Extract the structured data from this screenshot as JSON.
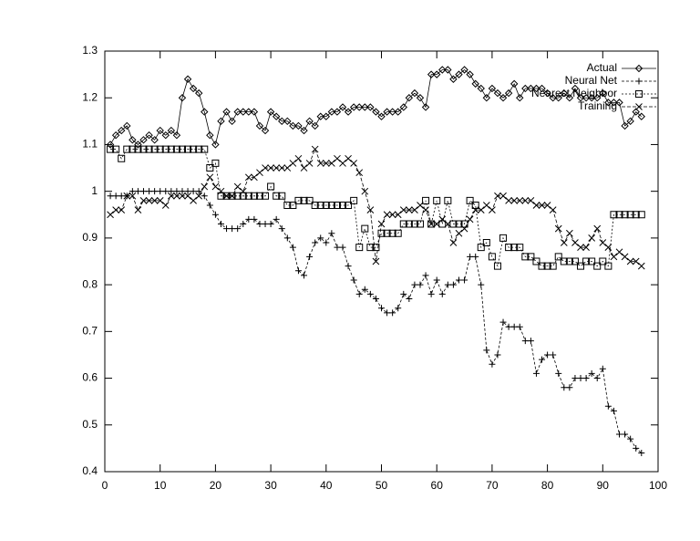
{
  "chart_data": {
    "type": "line",
    "x": [
      1,
      2,
      3,
      4,
      5,
      6,
      7,
      8,
      9,
      10,
      11,
      12,
      13,
      14,
      15,
      16,
      17,
      18,
      19,
      20,
      21,
      22,
      23,
      24,
      25,
      26,
      27,
      28,
      29,
      30,
      31,
      32,
      33,
      34,
      35,
      36,
      37,
      38,
      39,
      40,
      41,
      42,
      43,
      44,
      45,
      46,
      47,
      48,
      49,
      50,
      51,
      52,
      53,
      54,
      55,
      56,
      57,
      58,
      59,
      60,
      61,
      62,
      63,
      64,
      65,
      66,
      67,
      68,
      69,
      70,
      71,
      72,
      73,
      74,
      75,
      76,
      77,
      78,
      79,
      80,
      81,
      82,
      83,
      84,
      85,
      86,
      87,
      88,
      89,
      90,
      91,
      92,
      93,
      94,
      95,
      96,
      97
    ],
    "series": [
      {
        "name": "Actual",
        "color": "#000000",
        "marker": "diamond",
        "dash": "none",
        "values": [
          1.1,
          1.12,
          1.13,
          1.14,
          1.11,
          1.1,
          1.11,
          1.12,
          1.11,
          1.13,
          1.12,
          1.13,
          1.12,
          1.2,
          1.24,
          1.22,
          1.21,
          1.17,
          1.12,
          1.1,
          1.15,
          1.17,
          1.15,
          1.17,
          1.17,
          1.17,
          1.17,
          1.14,
          1.13,
          1.17,
          1.16,
          1.15,
          1.15,
          1.14,
          1.14,
          1.13,
          1.15,
          1.14,
          1.16,
          1.16,
          1.17,
          1.17,
          1.18,
          1.17,
          1.18,
          1.18,
          1.18,
          1.18,
          1.17,
          1.16,
          1.17,
          1.17,
          1.17,
          1.18,
          1.2,
          1.21,
          1.2,
          1.18,
          1.25,
          1.25,
          1.26,
          1.26,
          1.24,
          1.25,
          1.26,
          1.25,
          1.23,
          1.22,
          1.2,
          1.22,
          1.21,
          1.2,
          1.21,
          1.23,
          1.2,
          1.22,
          1.22,
          1.22,
          1.22,
          1.21,
          1.2,
          1.2,
          1.21,
          1.2,
          1.22,
          1.2,
          1.2,
          1.2,
          1.2,
          1.21,
          1.19,
          1.19,
          1.19,
          1.14,
          1.15,
          1.17,
          1.16
        ]
      },
      {
        "name": "Neural Net",
        "color": "#000000",
        "marker": "plus",
        "dash": "3,2",
        "values": [
          0.99,
          0.99,
          0.99,
          0.99,
          1.0,
          1.0,
          1.0,
          1.0,
          1.0,
          1.0,
          1.0,
          1.0,
          1.0,
          1.0,
          1.0,
          1.0,
          1.0,
          0.99,
          0.97,
          0.95,
          0.93,
          0.92,
          0.92,
          0.92,
          0.93,
          0.94,
          0.94,
          0.93,
          0.93,
          0.93,
          0.94,
          0.92,
          0.9,
          0.88,
          0.83,
          0.82,
          0.86,
          0.89,
          0.9,
          0.89,
          0.91,
          0.88,
          0.88,
          0.84,
          0.81,
          0.78,
          0.79,
          0.78,
          0.77,
          0.75,
          0.74,
          0.74,
          0.75,
          0.78,
          0.77,
          0.8,
          0.8,
          0.82,
          0.78,
          0.81,
          0.78,
          0.8,
          0.8,
          0.81,
          0.81,
          0.86,
          0.86,
          0.8,
          0.66,
          0.63,
          0.65,
          0.72,
          0.71,
          0.71,
          0.71,
          0.68,
          0.68,
          0.61,
          0.64,
          0.65,
          0.65,
          0.61,
          0.58,
          0.58,
          0.6,
          0.6,
          0.6,
          0.61,
          0.6,
          0.62,
          0.54,
          0.53,
          0.48,
          0.48,
          0.47,
          0.45,
          0.44
        ]
      },
      {
        "name": "Nearest Neighbor",
        "color": "#000000",
        "marker": "square",
        "dash": "2,2",
        "values": [
          1.09,
          1.09,
          1.07,
          1.09,
          1.09,
          1.09,
          1.09,
          1.09,
          1.09,
          1.09,
          1.09,
          1.09,
          1.09,
          1.09,
          1.09,
          1.09,
          1.09,
          1.09,
          1.05,
          1.06,
          0.99,
          0.99,
          0.99,
          0.99,
          0.99,
          0.99,
          0.99,
          0.99,
          0.99,
          1.01,
          0.99,
          0.99,
          0.97,
          0.97,
          0.98,
          0.98,
          0.98,
          0.97,
          0.97,
          0.97,
          0.97,
          0.97,
          0.97,
          0.97,
          0.98,
          0.88,
          0.92,
          0.88,
          0.88,
          0.91,
          0.91,
          0.91,
          0.91,
          0.93,
          0.93,
          0.93,
          0.93,
          0.98,
          0.93,
          0.98,
          0.93,
          0.98,
          0.93,
          0.93,
          0.93,
          0.98,
          0.97,
          0.88,
          0.89,
          0.86,
          0.84,
          0.9,
          0.88,
          0.88,
          0.88,
          0.86,
          0.86,
          0.85,
          0.84,
          0.84,
          0.84,
          0.86,
          0.85,
          0.85,
          0.85,
          0.84,
          0.85,
          0.85,
          0.84,
          0.85,
          0.84,
          0.95,
          0.95,
          0.95,
          0.95,
          0.95,
          0.95
        ]
      },
      {
        "name": "Training",
        "color": "#000000",
        "marker": "cross",
        "dash": "4,2",
        "values": [
          0.95,
          0.96,
          0.96,
          0.99,
          0.99,
          0.96,
          0.98,
          0.98,
          0.98,
          0.98,
          0.97,
          0.99,
          0.99,
          0.99,
          0.99,
          0.98,
          0.99,
          1.01,
          1.03,
          1.01,
          1.0,
          0.99,
          0.99,
          1.01,
          1.0,
          1.03,
          1.03,
          1.04,
          1.05,
          1.05,
          1.05,
          1.05,
          1.05,
          1.06,
          1.07,
          1.05,
          1.06,
          1.09,
          1.06,
          1.06,
          1.06,
          1.07,
          1.06,
          1.07,
          1.06,
          1.04,
          1.0,
          0.96,
          0.85,
          0.93,
          0.95,
          0.95,
          0.95,
          0.96,
          0.96,
          0.96,
          0.97,
          0.96,
          0.93,
          0.93,
          0.94,
          0.93,
          0.89,
          0.91,
          0.92,
          0.94,
          0.96,
          0.96,
          0.97,
          0.96,
          0.99,
          0.99,
          0.98,
          0.98,
          0.98,
          0.98,
          0.98,
          0.97,
          0.97,
          0.97,
          0.96,
          0.92,
          0.89,
          0.91,
          0.89,
          0.88,
          0.88,
          0.9,
          0.92,
          0.89,
          0.88,
          0.86,
          0.87,
          0.86,
          0.85,
          0.85,
          0.84
        ]
      }
    ],
    "xlim": [
      0,
      100
    ],
    "ylim": [
      0.4,
      1.3
    ],
    "xticks": [
      0,
      10,
      20,
      30,
      40,
      50,
      60,
      70,
      80,
      90,
      100
    ],
    "yticks": [
      0.4,
      0.5,
      0.6,
      0.7,
      0.8,
      0.9,
      1,
      1.1,
      1.2,
      1.3
    ],
    "legend": "top-right",
    "grid": false
  }
}
